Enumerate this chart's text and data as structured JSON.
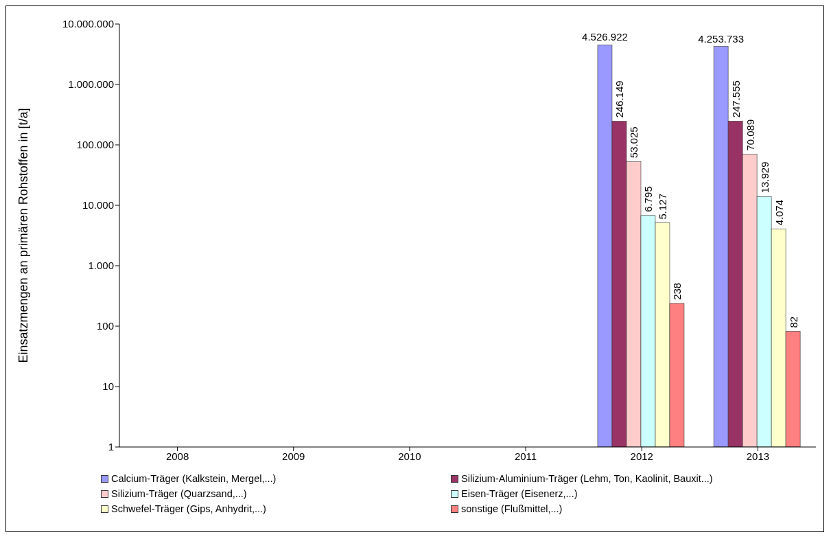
{
  "chart_data": {
    "type": "bar",
    "ylabel": "Einsatzmengen  an primären Rohstoffen in [t/a]",
    "categories": [
      "2008",
      "2009",
      "2010",
      "2011",
      "2012",
      "2013"
    ],
    "log": "y",
    "ylim": [
      1,
      10000000
    ],
    "yticks": [
      {
        "value": 1,
        "label": "1"
      },
      {
        "value": 10,
        "label": "10"
      },
      {
        "value": 100,
        "label": "100"
      },
      {
        "value": 1000,
        "label": "1.000"
      },
      {
        "value": 10000,
        "label": "10.000"
      },
      {
        "value": 100000,
        "label": "100.000"
      },
      {
        "value": 1000000,
        "label": "1.000.000"
      },
      {
        "value": 10000000,
        "label": "10.000.000"
      }
    ],
    "legend": "bottom",
    "series": [
      {
        "name": "Calcium-Träger (Kalkstein, Mergel,...)",
        "color": "#9999ff",
        "values": [
          null,
          null,
          null,
          null,
          4526922,
          4253733
        ],
        "value_labels": [
          null,
          null,
          null,
          null,
          "4.526.922",
          "4.253.733"
        ]
      },
      {
        "name": "Silizium-Aluminium-Träger (Lehm, Ton, Kaolinit, Bauxit...)",
        "color": "#993366",
        "values": [
          null,
          null,
          null,
          null,
          246149,
          247555
        ],
        "value_labels": [
          null,
          null,
          null,
          null,
          "246.149",
          "247.555"
        ]
      },
      {
        "name": "Silizium-Träger (Quarzsand,...)",
        "color": "#ffcccc",
        "values": [
          null,
          null,
          null,
          null,
          53025,
          70089
        ],
        "value_labels": [
          null,
          null,
          null,
          null,
          "53.025",
          "70.089"
        ]
      },
      {
        "name": "Eisen-Träger (Eisenerz,...)",
        "color": "#ccffff",
        "values": [
          null,
          null,
          null,
          null,
          6795,
          13929
        ],
        "value_labels": [
          null,
          null,
          null,
          null,
          "6.795",
          "13.929"
        ]
      },
      {
        "name": "Schwefel-Träger (Gips, Anhydrit,...)",
        "color": "#ffffcc",
        "values": [
          null,
          null,
          null,
          null,
          5127,
          4074
        ],
        "value_labels": [
          null,
          null,
          null,
          null,
          "5.127",
          "4.074"
        ]
      },
      {
        "name": "sonstige (Flußmittel,...)",
        "color": "#ff8080",
        "values": [
          null,
          null,
          null,
          null,
          238,
          82
        ],
        "value_labels": [
          null,
          null,
          null,
          null,
          "238",
          "82"
        ]
      }
    ]
  }
}
